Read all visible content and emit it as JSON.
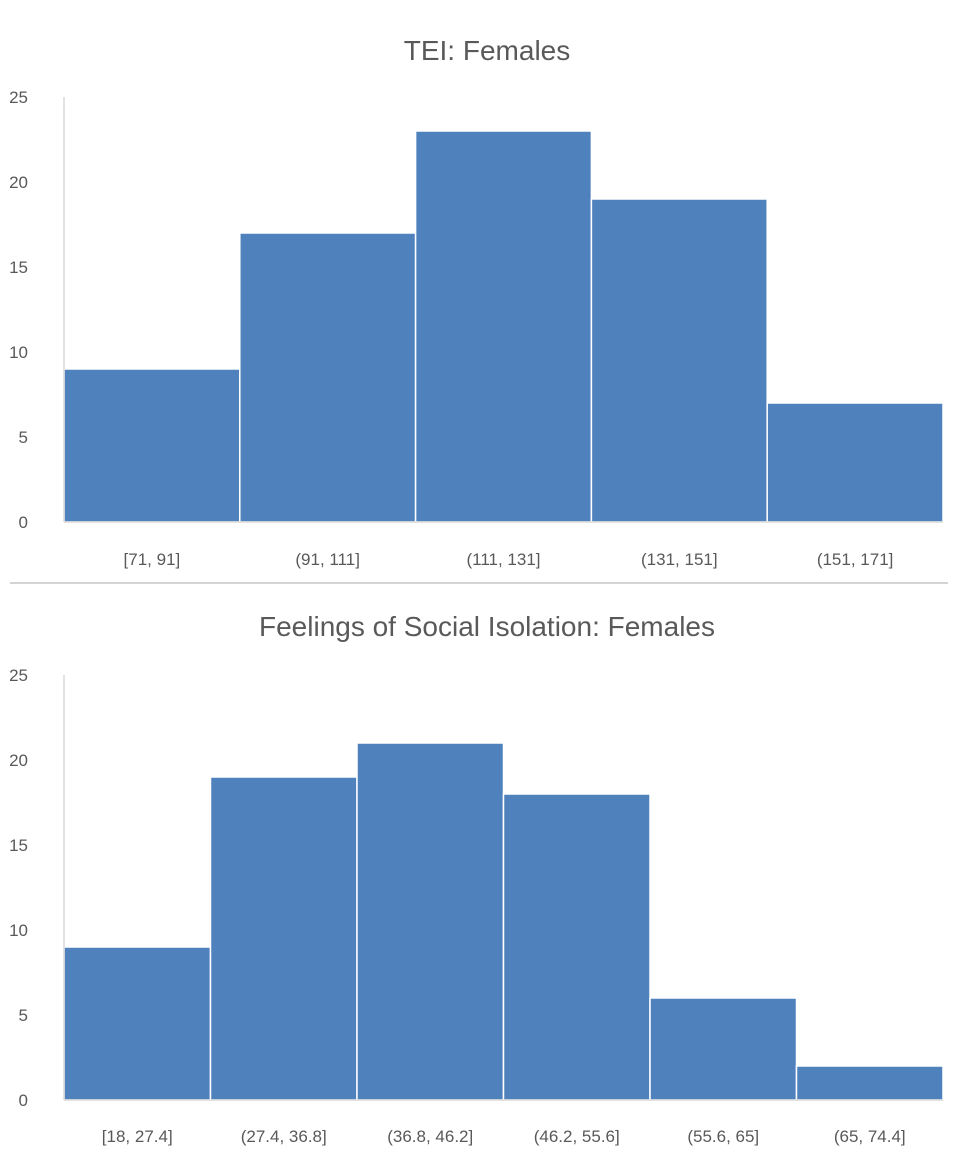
{
  "colors": {
    "bar": "#4f81bd",
    "bar_edge": "#ffffff",
    "axis": "#d9d9d9",
    "text": "#595959",
    "separator": "#d4d4d4"
  },
  "chart_data": [
    {
      "type": "bar",
      "title": "TEI: Females",
      "xlabel": "",
      "ylabel": "",
      "categories": [
        "[71, 91]",
        "(91, 111]",
        "(111, 131]",
        "(131, 151]",
        "(151, 171]"
      ],
      "values": [
        9,
        17,
        23,
        19,
        7
      ],
      "ylim": [
        0,
        25
      ],
      "yticks": [
        0,
        5,
        10,
        15,
        20,
        25
      ],
      "grid": false,
      "legend": "none"
    },
    {
      "type": "bar",
      "title": "Feelings of Social Isolation: Females",
      "xlabel": "",
      "ylabel": "",
      "categories": [
        "[18, 27.4]",
        "(27.4, 36.8]",
        "(36.8, 46.2]",
        "(46.2, 55.6]",
        "(55.6, 65]",
        "(65, 74.4]"
      ],
      "values": [
        9,
        19,
        21,
        18,
        6,
        2
      ],
      "ylim": [
        0,
        25
      ],
      "yticks": [
        0,
        5,
        10,
        15,
        20,
        25
      ],
      "grid": false,
      "legend": "none"
    }
  ]
}
